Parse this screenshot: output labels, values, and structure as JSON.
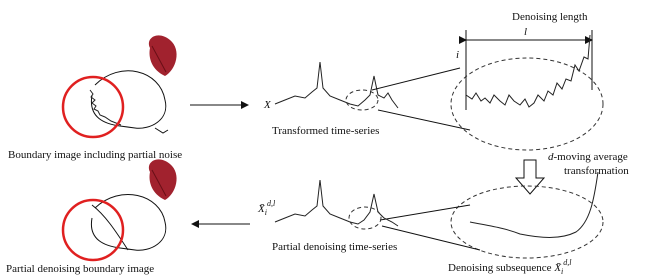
{
  "labels": {
    "denoising_length": "Denoising length",
    "l": "l",
    "i": "i",
    "x": "X",
    "transformed": "Transformed time-series",
    "boundary_noise": "Boundary image including partial noise",
    "transform_d": "d",
    "transform_rest": "-moving average",
    "transform_line2": "transformation",
    "partial_series": "Partial denoising time-series",
    "partial_boundary": "Partial denoising boundary image",
    "subsequence": "Denoising subsequence",
    "symbol": {
      "base": "X̄",
      "sub": "i",
      "sup": "d,l"
    }
  }
}
